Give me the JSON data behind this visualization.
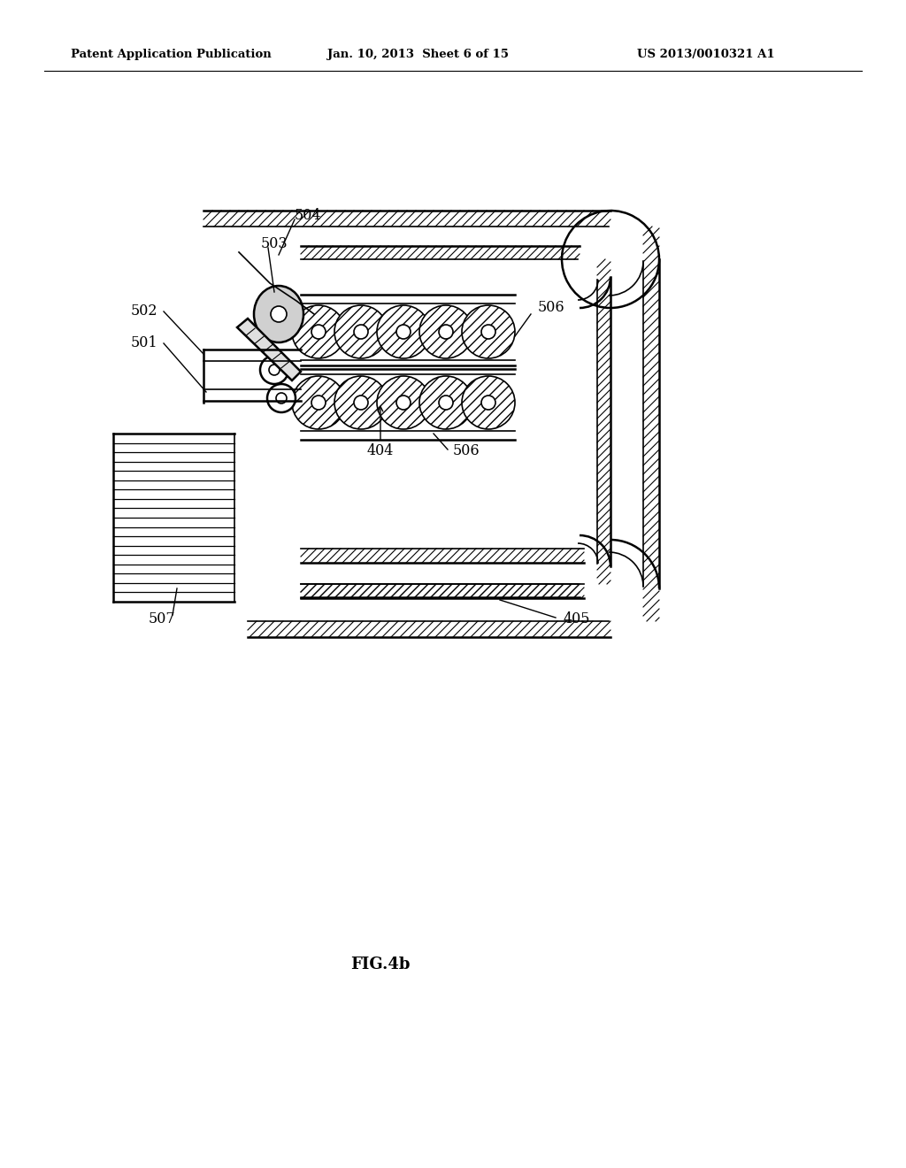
{
  "background_color": "#ffffff",
  "header_left": "Patent Application Publication",
  "header_center": "Jan. 10, 2013  Sheet 6 of 15",
  "header_right": "US 2013/0010321 A1",
  "figure_label": "FIG.4b"
}
